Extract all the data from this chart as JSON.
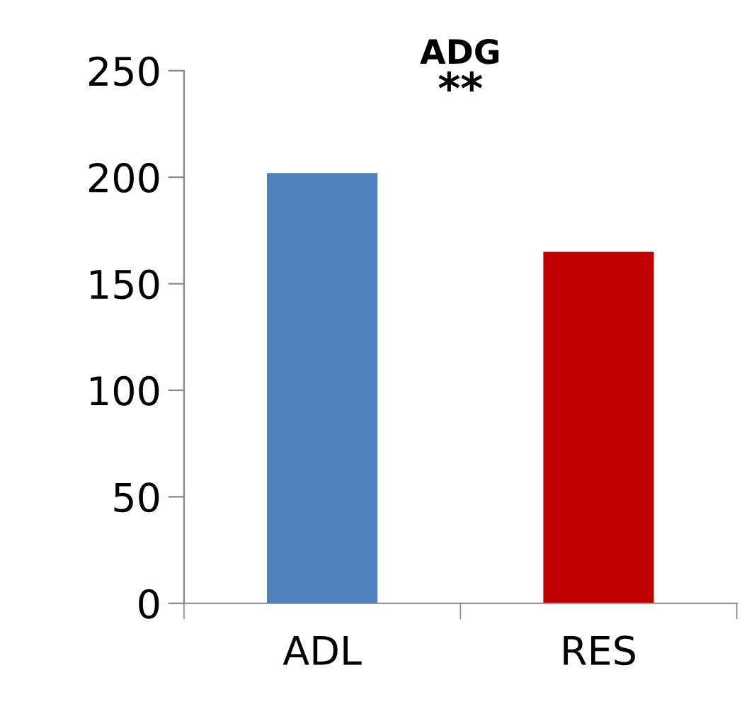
{
  "chart_data": {
    "type": "bar",
    "title": "ADG",
    "categories": [
      "ADL",
      "RES"
    ],
    "values": [
      202,
      165
    ],
    "colors": [
      "#4f81bd",
      "#c00000"
    ],
    "ylim": [
      0,
      250
    ],
    "yticks": [
      0,
      50,
      100,
      150,
      200,
      250
    ],
    "grid": false,
    "legend": false,
    "annotations": [
      "**"
    ]
  }
}
